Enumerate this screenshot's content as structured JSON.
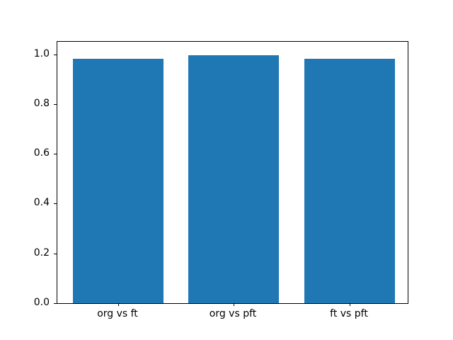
{
  "figure": {
    "background": "#ffffff"
  },
  "chart_data": {
    "type": "bar",
    "title": "",
    "xlabel": "",
    "ylabel": "",
    "categories": [
      "org vs ft",
      "org vs pft",
      "ft vs pft"
    ],
    "values": [
      0.983,
      0.997,
      0.982
    ],
    "ylim": [
      0,
      1.05
    ],
    "yticks": [
      0.0,
      0.2,
      0.4,
      0.6,
      0.8,
      1.0
    ],
    "ytick_labels": [
      "0.0",
      "0.2",
      "0.4",
      "0.6",
      "0.8",
      "1.0"
    ],
    "bar_color": "#1f77b4",
    "spine_color": "#000000",
    "grid": false,
    "legend_position": "none"
  }
}
